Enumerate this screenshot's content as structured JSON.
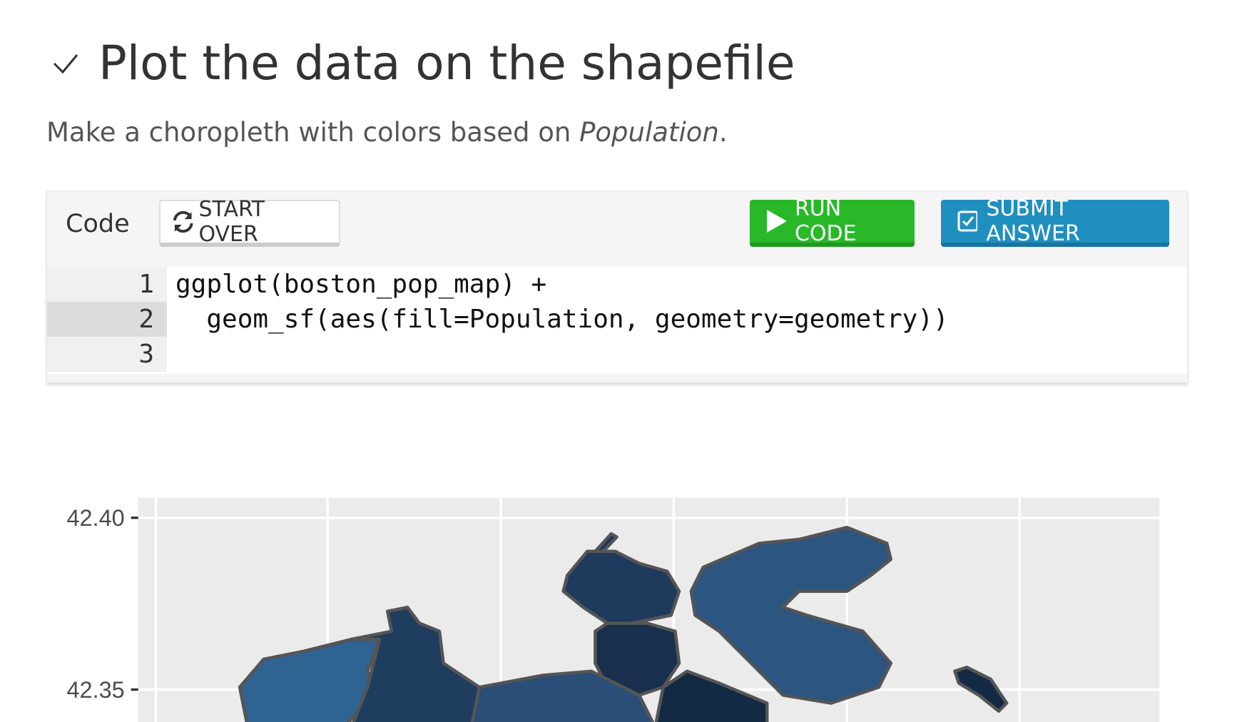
{
  "header": {
    "title": "Plot the data on the shapefile"
  },
  "description": {
    "text": "Make a choropleth with colors based on ",
    "emphasis": "Population",
    "end": "."
  },
  "toolbar": {
    "label": "Code",
    "start_over": "START OVER",
    "run": "RUN CODE",
    "submit": "SUBMIT ANSWER"
  },
  "editor": {
    "line_numbers": [
      "1",
      "2",
      "3"
    ],
    "lines": [
      "ggplot(boston_pop_map) +",
      "  geom_sf(aes(fill=Population, geometry=geometry))",
      ""
    ]
  },
  "plot": {
    "yticks": [
      {
        "value": 42.4,
        "label": "42.40"
      },
      {
        "value": 42.35,
        "label": "42.35"
      }
    ]
  }
}
